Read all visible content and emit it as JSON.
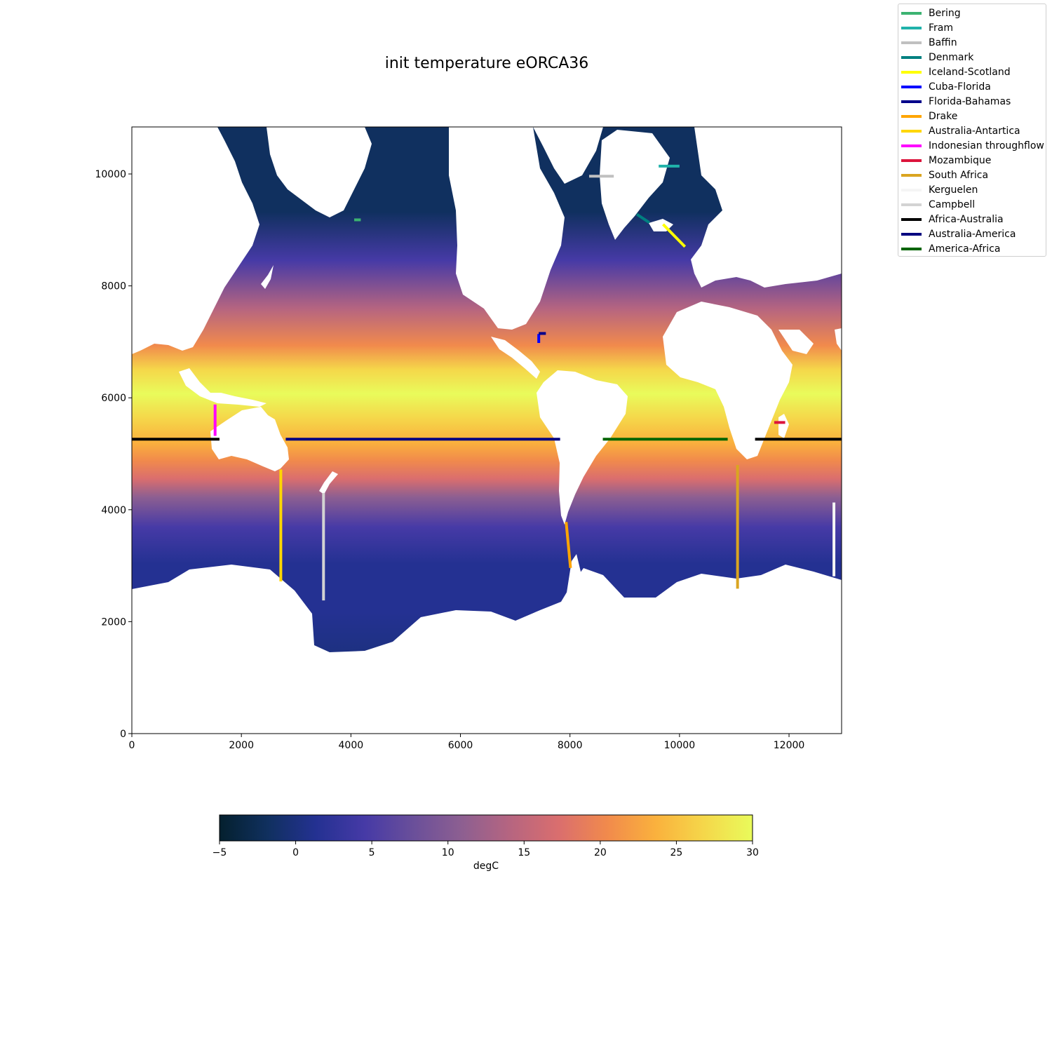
{
  "title": "init temperature eORCA36",
  "map": {
    "x_axis": {
      "range": [
        0,
        12960
      ],
      "ticks": [
        0,
        2000,
        4000,
        6000,
        8000,
        10000,
        12000
      ],
      "tick_labels": [
        "0",
        "2000",
        "4000",
        "6000",
        "8000",
        "10000",
        "12000"
      ]
    },
    "y_axis": {
      "range": [
        0,
        10840
      ],
      "ticks": [
        0,
        2000,
        4000,
        6000,
        8000,
        10000
      ],
      "tick_labels": [
        "0",
        "2000",
        "4000",
        "6000",
        "8000",
        "10000"
      ]
    },
    "field": "sea temperature (colormap, thermal)",
    "land_color": "#ffffff"
  },
  "colorbar": {
    "label": "degC",
    "range": [
      -5,
      30
    ],
    "ticks": [
      -5,
      0,
      5,
      10,
      15,
      20,
      25,
      30
    ],
    "tick_labels": [
      "−5",
      "0",
      "5",
      "10",
      "15",
      "20",
      "25",
      "30"
    ],
    "colormap": [
      "#04202e",
      "#10305f",
      "#243192",
      "#463aa6",
      "#6a4f9a",
      "#8d5f91",
      "#b66580",
      "#da6e6e",
      "#f18a4c",
      "#fab13d",
      "#f5d74a",
      "#e9fb5b"
    ]
  },
  "legend": {
    "placement": "top-right",
    "items": [
      {
        "label": "Bering",
        "color": "#3cb371"
      },
      {
        "label": "Fram",
        "color": "#20b2aa"
      },
      {
        "label": "Baffin",
        "color": "#c0c0c0"
      },
      {
        "label": "Denmark",
        "color": "#008080"
      },
      {
        "label": "Iceland-Scotland",
        "color": "#ffff00"
      },
      {
        "label": "Cuba-Florida",
        "color": "#0000ff"
      },
      {
        "label": "Florida-Bahamas",
        "color": "#00008b"
      },
      {
        "label": "Drake",
        "color": "#ffa500"
      },
      {
        "label": "Australia-Antartica",
        "color": "#ffd700"
      },
      {
        "label": "Indonesian throughflow",
        "color": "#ff00ff"
      },
      {
        "label": "Mozambique",
        "color": "#dc143c"
      },
      {
        "label": "South Africa",
        "color": "#daa520"
      },
      {
        "label": "Kerguelen",
        "color": "#f5f5f5"
      },
      {
        "label": "Campbell",
        "color": "#d3d3d3"
      },
      {
        "label": "Africa-Australia",
        "color": "#000000"
      },
      {
        "label": "Australia-America",
        "color": "#000080"
      },
      {
        "label": "America-Africa",
        "color": "#006400"
      }
    ]
  },
  "sections": [
    {
      "name": "Bering",
      "points": [
        [
          4060,
          9180
        ],
        [
          4180,
          9180
        ]
      ]
    },
    {
      "name": "Fram",
      "points": [
        [
          9620,
          10140
        ],
        [
          10000,
          10140
        ]
      ]
    },
    {
      "name": "Baffin",
      "points": [
        [
          8350,
          9960
        ],
        [
          8800,
          9960
        ]
      ]
    },
    {
      "name": "Denmark",
      "points": [
        [
          9220,
          9280
        ],
        [
          9450,
          9130
        ]
      ]
    },
    {
      "name": "Iceland-Scotland",
      "points": [
        [
          9700,
          9100
        ],
        [
          10100,
          8700
        ]
      ]
    },
    {
      "name": "Cuba-Florida",
      "points": [
        [
          7430,
          6980
        ],
        [
          7430,
          7140
        ]
      ]
    },
    {
      "name": "Florida-Bahamas",
      "points": [
        [
          7430,
          7150
        ],
        [
          7560,
          7150
        ]
      ]
    },
    {
      "name": "Drake",
      "points": [
        [
          7930,
          3780
        ],
        [
          8010,
          2960
        ]
      ]
    },
    {
      "name": "Australia-Antartica",
      "points": [
        [
          2720,
          4720
        ],
        [
          2720,
          2720
        ]
      ]
    },
    {
      "name": "Indonesian throughflow",
      "points": [
        [
          1520,
          5880
        ],
        [
          1520,
          5320
        ]
      ]
    },
    {
      "name": "Mozambique",
      "points": [
        [
          11730,
          5560
        ],
        [
          11930,
          5560
        ]
      ]
    },
    {
      "name": "South Africa",
      "points": [
        [
          11060,
          4800
        ],
        [
          11060,
          2590
        ]
      ]
    },
    {
      "name": "Kerguelen",
      "points": [
        [
          12820,
          4130
        ],
        [
          12820,
          2810
        ]
      ]
    },
    {
      "name": "Campbell",
      "points": [
        [
          3500,
          4300
        ],
        [
          3500,
          2380
        ]
      ]
    },
    {
      "name": "Africa-Australia",
      "points": [
        [
          0,
          5260
        ],
        [
          1600,
          5260
        ]
      ]
    },
    {
      "name": "Africa-Australia",
      "points": [
        [
          11380,
          5260
        ],
        [
          12960,
          5260
        ]
      ]
    },
    {
      "name": "Australia-America",
      "points": [
        [
          2810,
          5260
        ],
        [
          7820,
          5260
        ]
      ]
    },
    {
      "name": "America-Africa",
      "points": [
        [
          8600,
          5260
        ],
        [
          10880,
          5260
        ]
      ]
    }
  ]
}
